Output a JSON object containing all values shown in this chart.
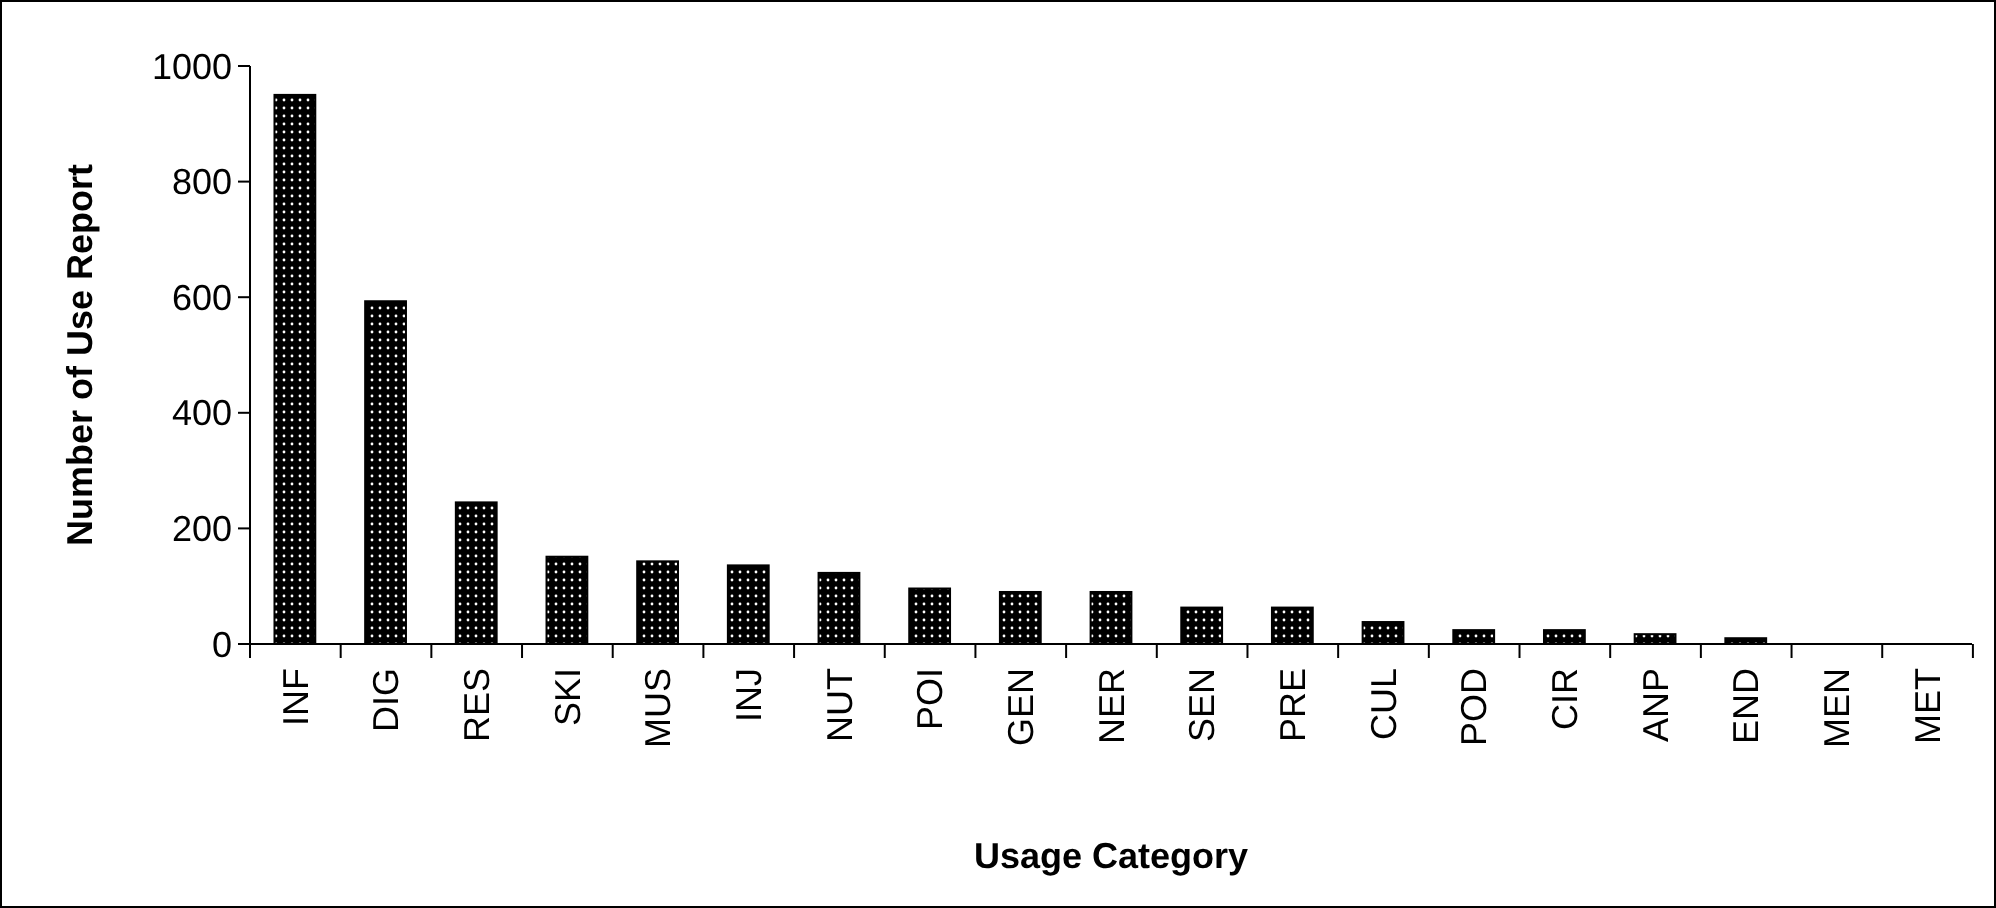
{
  "chart_data": {
    "type": "bar",
    "xlabel": "Usage Category",
    "ylabel": "Number of Use Report",
    "categories": [
      "INF",
      "DIG",
      "RES",
      "SKI",
      "MUS",
      "INJ",
      "NUT",
      "POI",
      "GEN",
      "NER",
      "SEN",
      "PRE",
      "CUL",
      "POD",
      "CIR",
      "ANP",
      "END",
      "MEN",
      "MET"
    ],
    "values": [
      950,
      593,
      245,
      151,
      143,
      136,
      123,
      96,
      90,
      90,
      63,
      63,
      38,
      24,
      24,
      17,
      10,
      0,
      0
    ],
    "color": "#000000",
    "ylim": [
      0,
      1000
    ],
    "yticks": [
      0,
      200,
      400,
      600,
      800,
      1000
    ],
    "grid": false
  }
}
